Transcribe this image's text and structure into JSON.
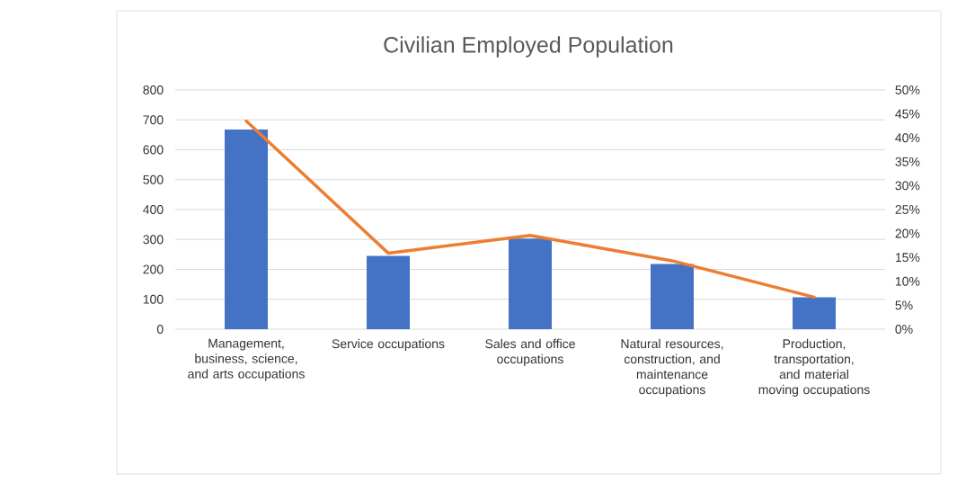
{
  "chart_data": {
    "type": "bar",
    "title": "Civilian Employed Population",
    "categories": [
      "Management, business, science, and arts occupations",
      "Service occupations",
      "Sales and office occupations",
      "Natural resources, construction, and maintenance occupations",
      "Production, transportation, and material moving occupations"
    ],
    "series": [
      {
        "color": "#4472c4",
        "values": [
          668,
          245,
          303,
          218,
          107
        ]
      },
      {
        "type": "line",
        "color": "#ed7d31",
        "axis": "y2",
        "values": [
          43.5,
          15.9,
          19.6,
          14.3,
          6.7
        ]
      }
    ],
    "ylim": [
      0,
      800
    ],
    "yticks": [
      0,
      100,
      200,
      300,
      400,
      500,
      600,
      700,
      800
    ],
    "y2lim": [
      0,
      50
    ],
    "y2ticks": [
      {
        "value": 0,
        "label": "0%"
      },
      {
        "value": 5,
        "label": "5%"
      },
      {
        "value": 10,
        "label": "10%"
      },
      {
        "value": 15,
        "label": "15%"
      },
      {
        "value": 20,
        "label": "20%"
      },
      {
        "value": 25,
        "label": "25%"
      },
      {
        "value": 30,
        "label": "30%"
      },
      {
        "value": 35,
        "label": "35%"
      },
      {
        "value": 40,
        "label": "40%"
      },
      {
        "value": 45,
        "label": "45%"
      },
      {
        "value": 50,
        "label": "50%"
      }
    ],
    "grid": "y"
  }
}
